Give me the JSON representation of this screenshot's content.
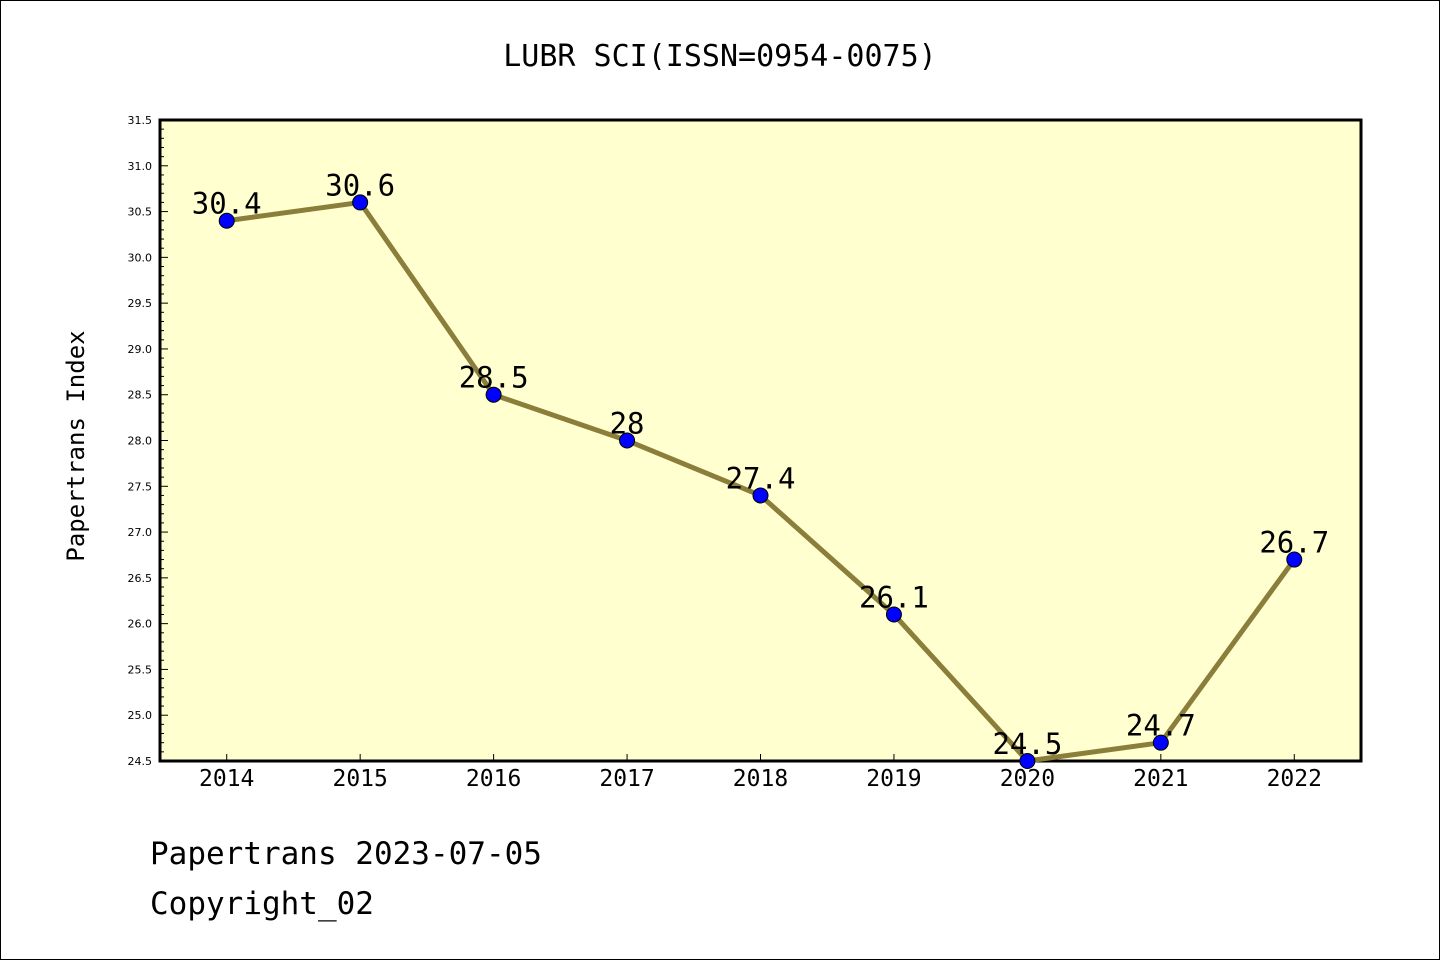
{
  "chart_data": {
    "type": "line",
    "title": "LUBR SCI(ISSN=0954-0075)",
    "xlabel": "",
    "ylabel": "Papertrans Index",
    "categories": [
      "2014",
      "2015",
      "2016",
      "2017",
      "2018",
      "2019",
      "2020",
      "2021",
      "2022"
    ],
    "values": [
      30.4,
      30.6,
      28.5,
      28,
      27.4,
      26.1,
      24.5,
      24.7,
      26.7
    ],
    "data_labels": [
      "30.4",
      "30.6",
      "28.5",
      "28",
      "27.4",
      "26.1",
      "24.5",
      "24.7",
      "26.7"
    ],
    "ylim": [
      24.5,
      31.5
    ],
    "y_ticks": [
      "24.5",
      "25.0",
      "25.5",
      "26.0",
      "26.5",
      "27.0",
      "27.5",
      "28.0",
      "28.5",
      "29.0",
      "29.5",
      "30.0",
      "30.5",
      "31.0",
      "31.5"
    ],
    "grid": false,
    "legend": "none",
    "colors": {
      "plot_background": "#ffffd0",
      "line": "#8b7d3a",
      "marker": "#0000ff"
    }
  },
  "footer": {
    "line1": "Papertrans 2023-07-05",
    "line2": "Copyright_02"
  }
}
